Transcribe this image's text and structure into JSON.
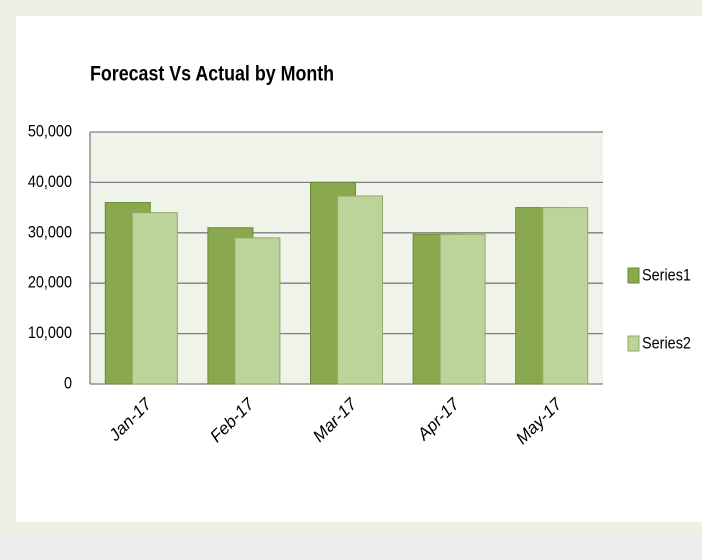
{
  "chart_data": {
    "type": "bar",
    "title": "Forecast Vs Actual by Month",
    "categories": [
      "Jan-17",
      "Feb-17",
      "Mar-17",
      "Apr-17",
      "May-17"
    ],
    "series": [
      {
        "name": "Series1",
        "color": "#8aa84e",
        "values": [
          36000,
          31000,
          40000,
          29700,
          35000
        ]
      },
      {
        "name": "Series2",
        "color": "#bcd39a",
        "values": [
          34000,
          29000,
          37300,
          29700,
          35000
        ]
      }
    ],
    "ylim": [
      0,
      50000
    ],
    "yticks": [
      0,
      {
        "value": 10000,
        "label": "10,000"
      },
      {
        "value": 20000,
        "label": "20,000"
      },
      {
        "value": 30000,
        "label": "30,000"
      },
      {
        "value": 40000,
        "label": "40,000"
      },
      {
        "value": 50000,
        "label": "50,000"
      }
    ],
    "grid": true,
    "legend": "right"
  }
}
